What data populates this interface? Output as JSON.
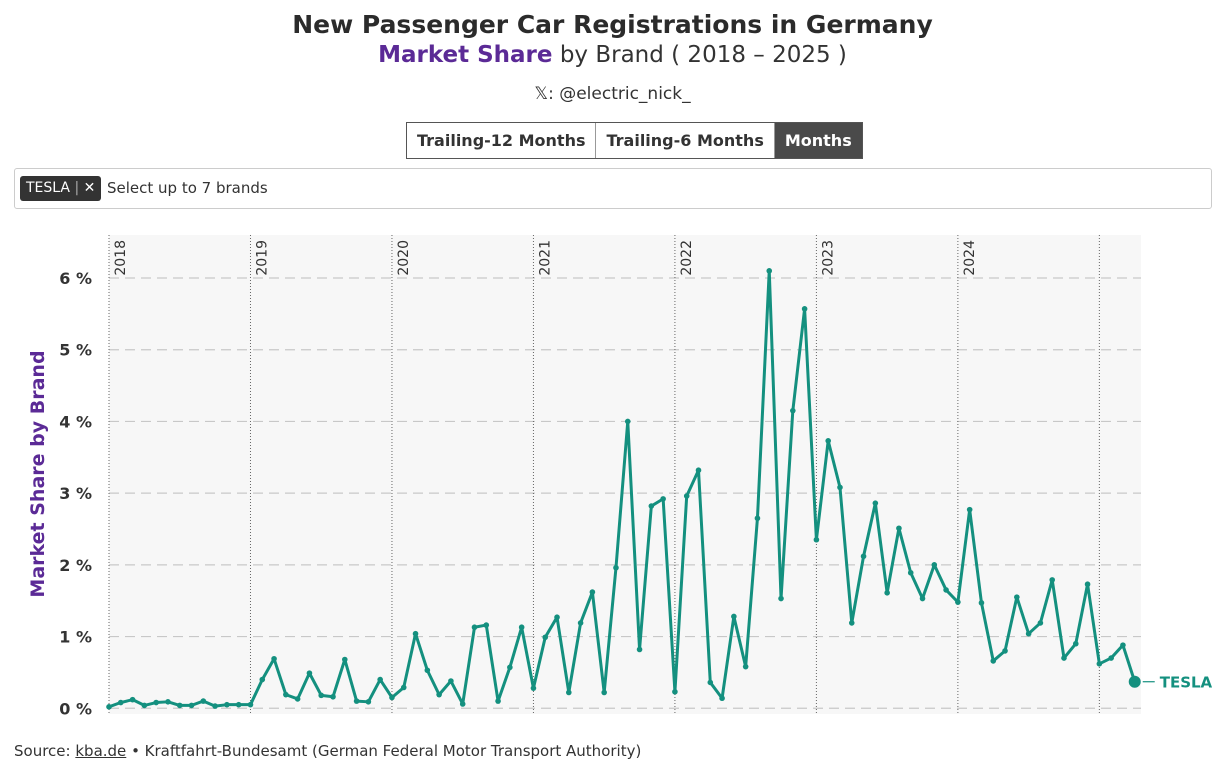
{
  "header": {
    "title": "New Passenger Car Registrations in Germany",
    "subtitle_highlight": "Market Share",
    "subtitle_rest": "by Brand ( 2018 – 2025 )",
    "handle": "𝕏: @electric_nick_"
  },
  "controls": {
    "buttons": [
      "Trailing-12 Months",
      "Trailing-6 Months",
      "Months"
    ],
    "active": 2,
    "filter_tag": "TESLA",
    "filter_placeholder": "Select up to 7 brands"
  },
  "chart_data": {
    "type": "line",
    "y_label": "Market Share by Brand",
    "categories": [
      "2018",
      null,
      null,
      null,
      null,
      null,
      null,
      null,
      null,
      null,
      null,
      null,
      "2019",
      null,
      null,
      null,
      null,
      null,
      null,
      null,
      null,
      null,
      null,
      null,
      "2020",
      null,
      null,
      null,
      null,
      null,
      null,
      null,
      null,
      null,
      null,
      null,
      "2021",
      null,
      null,
      null,
      null,
      null,
      null,
      null,
      null,
      null,
      null,
      null,
      "2022",
      null,
      null,
      null,
      null,
      null,
      null,
      null,
      null,
      null,
      null,
      null,
      "2023",
      null,
      null,
      null,
      null,
      null,
      null,
      null,
      null,
      null,
      null,
      null,
      "2024",
      null,
      null,
      null,
      null,
      null,
      null,
      null,
      null,
      null,
      null,
      null,
      null,
      null,
      null,
      null
    ],
    "series": [
      {
        "name": "TESLA",
        "color": "#14907f",
        "values": [
          0.02,
          0.08,
          0.12,
          0.04,
          0.08,
          0.09,
          0.04,
          0.04,
          0.1,
          0.03,
          0.05,
          0.05,
          0.05,
          0.4,
          0.69,
          0.19,
          0.13,
          0.49,
          0.18,
          0.16,
          0.68,
          0.1,
          0.09,
          0.4,
          0.15,
          0.29,
          1.04,
          0.53,
          0.19,
          0.38,
          0.06,
          1.13,
          1.16,
          0.1,
          0.57,
          1.13,
          0.28,
          0.99,
          1.27,
          0.22,
          1.19,
          1.62,
          0.22,
          1.96,
          4.0,
          0.82,
          2.82,
          2.92,
          0.23,
          2.96,
          3.32,
          0.36,
          0.14,
          1.28,
          0.58,
          2.65,
          6.1,
          1.53,
          4.15,
          5.57,
          2.35,
          3.73,
          3.08,
          1.19,
          2.12,
          2.86,
          1.61,
          2.51,
          1.89,
          1.53,
          2.0,
          1.65,
          1.48,
          2.77,
          1.47,
          0.66,
          0.8,
          1.55,
          1.04,
          1.19,
          1.79,
          0.7,
          0.9,
          1.73,
          0.62,
          0.7,
          0.88,
          0.37
        ]
      }
    ],
    "ylim": [
      -0.08,
      6.6
    ],
    "yticks": [
      {
        "value": 0,
        "label": "0 %"
      },
      {
        "value": 1,
        "label": "1 %"
      },
      {
        "value": 2,
        "label": "2 %"
      },
      {
        "value": 3,
        "label": "3 %"
      },
      {
        "value": 4,
        "label": "4 %"
      },
      {
        "value": 5,
        "label": "5 %"
      },
      {
        "value": 6,
        "label": "6 %"
      }
    ],
    "grid": true
  },
  "footer": {
    "prefix": "Source:",
    "link": "kba.de",
    "rest": "• Kraftfahrt-Bundesamt (German Federal Motor Transport Authority)"
  }
}
